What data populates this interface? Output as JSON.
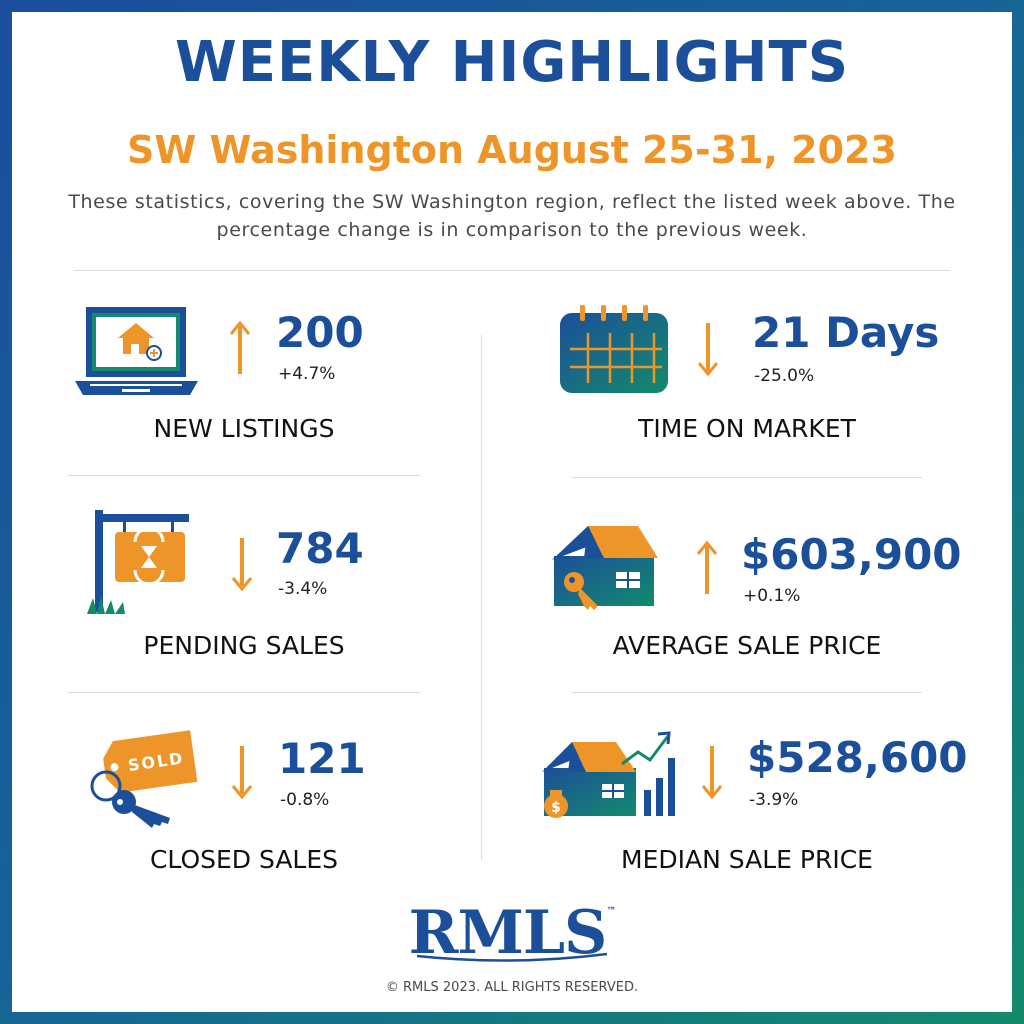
{
  "header": {
    "title": "WEEKLY HIGHLIGHTS",
    "subtitle": "SW Washington August 25-31, 2023",
    "description": "These statistics, covering the SW Washington region, reflect the listed week above. The percentage change is in comparison to the previous week."
  },
  "colors": {
    "brand_blue": "#1c4f99",
    "accent_orange": "#ee9529",
    "teal": "#138a6c"
  },
  "stats": {
    "new_listings": {
      "value": "200",
      "change": "+4.7%",
      "label": "NEW LISTINGS",
      "direction": "up",
      "icon": "laptop-house-icon"
    },
    "pending_sales": {
      "value": "784",
      "change": "-3.4%",
      "label": "PENDING SALES",
      "direction": "down",
      "icon": "for-sale-sign-icon"
    },
    "closed_sales": {
      "value": "121",
      "change": "-0.8%",
      "label": "CLOSED SALES",
      "direction": "down",
      "icon": "sold-tag-keys-icon",
      "tag_text": "SOLD"
    },
    "time_on_market": {
      "value": "21 Days",
      "change": "-25.0%",
      "label": "TIME ON MARKET",
      "direction": "down",
      "icon": "calendar-icon"
    },
    "average_sale_price": {
      "value": "$603,900",
      "change": "+0.1%",
      "label": "AVERAGE SALE PRICE",
      "direction": "up",
      "icon": "house-key-icon"
    },
    "median_sale_price": {
      "value": "$528,600",
      "change": "-3.9%",
      "label": "MEDIAN SALE PRICE",
      "direction": "down",
      "icon": "house-chart-icon"
    }
  },
  "footer": {
    "logo": "RMLS",
    "trademark": "™",
    "copyright": "© RMLS 2023. ALL RIGHTS RESERVED."
  }
}
